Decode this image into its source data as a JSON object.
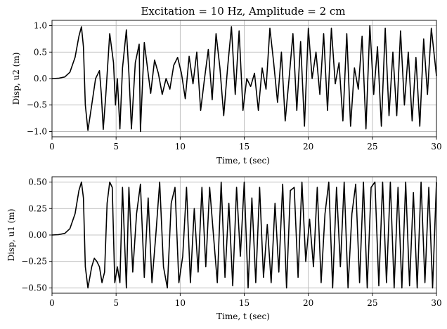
{
  "chart_data": [
    {
      "type": "line",
      "title": "Excitation = 10 Hz, Amplitude = 2 cm",
      "xlabel": "Time, t (sec)",
      "ylabel": "Disp, u2 (m)",
      "xlim": [
        0,
        30
      ],
      "ylim": [
        -1.1,
        1.1
      ],
      "xticks": [
        0,
        5,
        10,
        15,
        20,
        25,
        30
      ],
      "xtick_labels": [
        "0",
        "5",
        "10",
        "15",
        "20",
        "25",
        "30"
      ],
      "yticks": [
        -1.0,
        -0.5,
        0.0,
        0.5,
        1.0
      ],
      "ytick_labels": [
        "−1.0",
        "−0.5",
        "0.0",
        "0.5",
        "1.0"
      ],
      "grid": true,
      "series": [
        {
          "name": "u2",
          "color": "#000000",
          "x": [
            0,
            0.5,
            1.0,
            1.4,
            1.8,
            2.1,
            2.3,
            2.45,
            2.6,
            2.8,
            3.1,
            3.4,
            3.7,
            3.85,
            4.0,
            4.2,
            4.5,
            4.8,
            4.95,
            5.1,
            5.3,
            5.5,
            5.8,
            6.0,
            6.2,
            6.5,
            6.8,
            6.9,
            7.2,
            7.4,
            7.7,
            8.0,
            8.3,
            8.6,
            8.9,
            9.2,
            9.5,
            9.8,
            10.1,
            10.4,
            10.7,
            11.0,
            11.3,
            11.6,
            11.9,
            12.2,
            12.5,
            12.8,
            13.1,
            13.4,
            13.7,
            14.0,
            14.3,
            14.6,
            14.9,
            15.2,
            15.5,
            15.8,
            16.1,
            16.4,
            16.7,
            17.0,
            17.3,
            17.6,
            17.9,
            18.2,
            18.5,
            18.8,
            19.1,
            19.4,
            19.7,
            20.0,
            20.3,
            20.6,
            20.9,
            21.2,
            21.5,
            21.8,
            22.1,
            22.4,
            22.7,
            23.0,
            23.3,
            23.6,
            23.9,
            24.2,
            24.5,
            24.8,
            25.1,
            25.4,
            25.7,
            26.0,
            26.3,
            26.6,
            26.9,
            27.2,
            27.5,
            27.8,
            28.1,
            28.4,
            28.7,
            29.0,
            29.3,
            29.6,
            30.0
          ],
          "y": [
            0.0,
            0.005,
            0.03,
            0.12,
            0.4,
            0.8,
            0.98,
            0.6,
            -0.5,
            -0.98,
            -0.5,
            0.0,
            0.15,
            -0.3,
            -0.96,
            -0.3,
            0.85,
            0.3,
            -0.5,
            0.0,
            -0.95,
            0.2,
            0.92,
            0.1,
            -0.95,
            0.3,
            0.65,
            -1.0,
            0.68,
            0.3,
            -0.28,
            0.35,
            0.1,
            -0.3,
            0.0,
            -0.2,
            0.25,
            0.4,
            0.1,
            -0.38,
            0.42,
            -0.1,
            0.5,
            -0.6,
            0.0,
            0.55,
            -0.4,
            0.85,
            0.2,
            -0.7,
            0.2,
            0.98,
            -0.3,
            0.9,
            -0.6,
            0.0,
            -0.15,
            0.1,
            -0.6,
            0.2,
            -0.2,
            0.95,
            0.3,
            -0.45,
            0.5,
            -0.8,
            0.0,
            0.85,
            -0.6,
            0.7,
            -0.9,
            0.95,
            0.0,
            0.5,
            -0.3,
            0.85,
            -0.6,
            0.95,
            -0.1,
            0.3,
            -0.8,
            0.85,
            -0.9,
            0.2,
            -0.2,
            0.8,
            -0.95,
            1.0,
            -0.3,
            0.6,
            -0.9,
            0.95,
            -0.7,
            0.5,
            -0.7,
            0.9,
            -0.5,
            0.5,
            -0.8,
            0.4,
            -0.9,
            0.75,
            -0.3,
            0.95,
            0.05
          ]
        }
      ]
    },
    {
      "type": "line",
      "title": "",
      "xlabel": "Time, t (sec)",
      "ylabel": "Disp, u1 (m)",
      "xlim": [
        0,
        30
      ],
      "ylim": [
        -0.55,
        0.55
      ],
      "xticks": [
        0,
        5,
        10,
        15,
        20,
        25,
        30
      ],
      "xtick_labels": [
        "0",
        "5",
        "10",
        "15",
        "20",
        "25",
        "30"
      ],
      "yticks": [
        -0.5,
        -0.25,
        0.0,
        0.25,
        0.5
      ],
      "ytick_labels": [
        "−0.50",
        "−0.25",
        "0.00",
        "0.25",
        "0.50"
      ],
      "grid": true,
      "series": [
        {
          "name": "u1",
          "color": "#000000",
          "x": [
            0,
            0.5,
            1.0,
            1.4,
            1.8,
            2.1,
            2.3,
            2.45,
            2.6,
            2.8,
            3.1,
            3.3,
            3.5,
            3.7,
            3.9,
            4.1,
            4.3,
            4.5,
            4.7,
            4.9,
            5.1,
            5.3,
            5.5,
            5.8,
            6.0,
            6.3,
            6.6,
            6.9,
            7.2,
            7.5,
            7.8,
            8.1,
            8.4,
            8.7,
            9.0,
            9.3,
            9.6,
            9.9,
            10.2,
            10.5,
            10.8,
            11.1,
            11.4,
            11.7,
            12.0,
            12.3,
            12.6,
            12.9,
            13.2,
            13.5,
            13.8,
            14.1,
            14.4,
            14.7,
            15.0,
            15.3,
            15.6,
            15.9,
            16.2,
            16.5,
            16.8,
            17.1,
            17.4,
            17.7,
            18.0,
            18.3,
            18.6,
            18.9,
            19.2,
            19.5,
            19.8,
            20.1,
            20.4,
            20.7,
            21.0,
            21.3,
            21.6,
            21.9,
            22.2,
            22.5,
            22.8,
            23.1,
            23.4,
            23.7,
            24.0,
            24.3,
            24.6,
            24.9,
            25.2,
            25.5,
            25.8,
            26.1,
            26.4,
            26.7,
            27.0,
            27.3,
            27.6,
            27.9,
            28.2,
            28.5,
            28.8,
            29.1,
            29.4,
            29.7,
            30.0
          ],
          "y": [
            0.0,
            0.003,
            0.015,
            0.06,
            0.2,
            0.42,
            0.5,
            0.35,
            -0.3,
            -0.5,
            -0.3,
            -0.22,
            -0.25,
            -0.3,
            -0.45,
            -0.35,
            0.3,
            0.5,
            0.45,
            -0.45,
            -0.3,
            -0.45,
            0.45,
            -0.5,
            0.45,
            -0.35,
            0.2,
            0.48,
            -0.4,
            0.35,
            -0.45,
            0.0,
            0.5,
            -0.3,
            -0.5,
            0.3,
            0.45,
            -0.45,
            -0.2,
            0.45,
            -0.45,
            0.25,
            -0.35,
            0.45,
            -0.3,
            0.45,
            0.0,
            -0.45,
            0.5,
            -0.4,
            0.3,
            -0.48,
            0.45,
            -0.2,
            0.5,
            -0.5,
            0.35,
            -0.45,
            0.45,
            -0.4,
            0.1,
            -0.45,
            0.3,
            -0.35,
            0.48,
            -0.5,
            0.42,
            0.45,
            -0.4,
            0.5,
            -0.25,
            0.15,
            -0.3,
            0.45,
            -0.45,
            0.2,
            0.5,
            -0.5,
            0.45,
            -0.3,
            0.5,
            -0.5,
            0.2,
            0.48,
            -0.45,
            0.5,
            -0.5,
            0.45,
            0.5,
            -0.48,
            0.5,
            -0.45,
            0.5,
            -0.5,
            0.45,
            -0.5,
            0.5,
            -0.48,
            0.4,
            -0.5,
            0.5,
            -0.45,
            0.45,
            -0.5,
            0.5
          ]
        }
      ]
    }
  ]
}
